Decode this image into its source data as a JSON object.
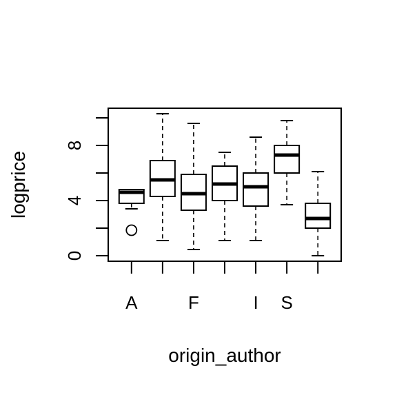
{
  "chart_data": {
    "type": "box",
    "xlabel": "origin_author",
    "ylabel": "logprice",
    "ylim": [
      -0.4,
      10.7
    ],
    "grid": false,
    "legend": "none",
    "y_ticks": [
      0,
      2,
      4,
      6,
      8,
      10
    ],
    "y_tick_labels": [
      {
        "value": 0,
        "text": "0"
      },
      {
        "value": 4,
        "text": "4"
      },
      {
        "value": 8,
        "text": "8"
      }
    ],
    "x_tick_labels": [
      {
        "index": 0,
        "text": "A"
      },
      {
        "index": 2,
        "text": "F"
      },
      {
        "index": 4,
        "text": "I"
      },
      {
        "index": 5,
        "text": "S"
      }
    ],
    "boxes": [
      {
        "q1": 3.8,
        "median": 4.6,
        "q3": 4.8,
        "whisker_low": 3.4,
        "whisker_high": 4.8,
        "outliers": [
          1.85
        ]
      },
      {
        "q1": 4.3,
        "median": 5.5,
        "q3": 6.9,
        "whisker_low": 1.1,
        "whisker_high": 10.3,
        "outliers": []
      },
      {
        "q1": 3.3,
        "median": 4.5,
        "q3": 5.9,
        "whisker_low": 0.45,
        "whisker_high": 9.6,
        "outliers": []
      },
      {
        "q1": 4.0,
        "median": 5.2,
        "q3": 6.5,
        "whisker_low": 1.1,
        "whisker_high": 7.5,
        "outliers": []
      },
      {
        "q1": 3.6,
        "median": 5.0,
        "q3": 6.0,
        "whisker_low": 1.1,
        "whisker_high": 8.6,
        "outliers": []
      },
      {
        "q1": 6.0,
        "median": 7.3,
        "q3": 8.0,
        "whisker_low": 3.7,
        "whisker_high": 9.8,
        "outliers": []
      },
      {
        "q1": 2.0,
        "median": 2.7,
        "q3": 3.8,
        "whisker_low": 0.0,
        "whisker_high": 6.1,
        "outliers": []
      }
    ]
  }
}
